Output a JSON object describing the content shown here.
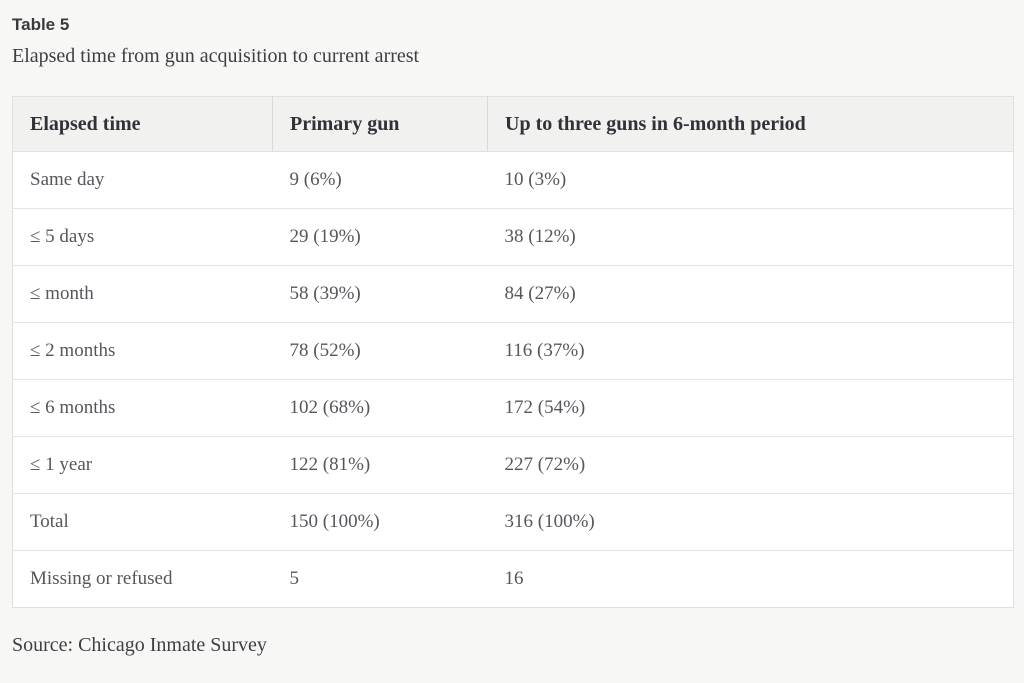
{
  "chart_data": {
    "type": "table",
    "title": "Table 5",
    "subtitle": "Elapsed time from gun acquisition to current arrest",
    "columns": [
      {
        "key": "elapsed",
        "label": "Elapsed time"
      },
      {
        "key": "primary",
        "label": "Primary gun"
      },
      {
        "key": "three",
        "label": "Up to three guns in 6-month period"
      }
    ],
    "rows": [
      {
        "elapsed": "Same day",
        "primary": "9 (6%)",
        "three": "10 (3%)"
      },
      {
        "elapsed": "≤ 5 days",
        "primary": "29 (19%)",
        "three": "38 (12%)"
      },
      {
        "elapsed": "≤ month",
        "primary": "58 (39%)",
        "three": "84 (27%)"
      },
      {
        "elapsed": "≤ 2 months",
        "primary": "78 (52%)",
        "three": "116 (37%)"
      },
      {
        "elapsed": "≤ 6 months",
        "primary": "102 (68%)",
        "three": "172 (54%)"
      },
      {
        "elapsed": "≤ 1 year",
        "primary": "122 (81%)",
        "three": "227 (72%)"
      },
      {
        "elapsed": "Total",
        "primary": "150 (100%)",
        "three": "316 (100%)"
      },
      {
        "elapsed": "Missing or refused",
        "primary": "5",
        "three": "16"
      }
    ],
    "footer_source": "Source: Chicago Inmate Survey",
    "layout_hints": {
      "header_background": "#f1f1ef",
      "body_background": "#ffffff",
      "grid": "horizontal-rules-only-in-body, vertical-dividers-in-header"
    }
  },
  "theme": {
    "page_bg": "#f7f7f6",
    "table_bg": "#ffffff",
    "header_bg": "#f1f1ef",
    "border": "#e0e0e0",
    "row_border": "#e4e4e4",
    "header_divider": "#d9d9d9",
    "title_color": "#3a3a3a",
    "heading_text": "#2f3338",
    "body_text": "#54575b",
    "dark_text": "#3c4043"
  }
}
